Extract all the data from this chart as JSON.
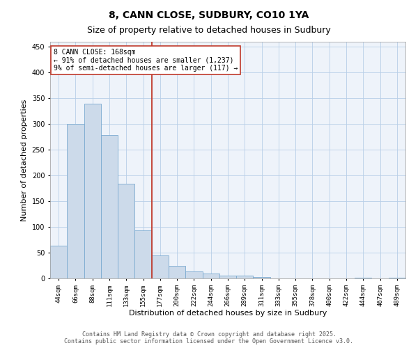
{
  "title": "8, CANN CLOSE, SUDBURY, CO10 1YA",
  "subtitle": "Size of property relative to detached houses in Sudbury",
  "xlabel": "Distribution of detached houses by size in Sudbury",
  "ylabel": "Number of detached properties",
  "categories": [
    "44sqm",
    "66sqm",
    "88sqm",
    "111sqm",
    "133sqm",
    "155sqm",
    "177sqm",
    "200sqm",
    "222sqm",
    "244sqm",
    "266sqm",
    "289sqm",
    "311sqm",
    "333sqm",
    "355sqm",
    "378sqm",
    "400sqm",
    "422sqm",
    "444sqm",
    "467sqm",
    "489sqm"
  ],
  "values": [
    64,
    301,
    340,
    279,
    184,
    93,
    45,
    24,
    14,
    10,
    5,
    5,
    3,
    0,
    0,
    0,
    0,
    0,
    1,
    0,
    1
  ],
  "bar_color": "#ccdaea",
  "bar_edge_color": "#7aaad0",
  "vline_color": "#c0392b",
  "annotation_text": "8 CANN CLOSE: 168sqm\n← 91% of detached houses are smaller (1,237)\n9% of semi-detached houses are larger (117) →",
  "annotation_box_color": "#c0392b",
  "ylim": [
    0,
    460
  ],
  "yticks": [
    0,
    50,
    100,
    150,
    200,
    250,
    300,
    350,
    400,
    450
  ],
  "grid_color": "#b8cfe8",
  "background_color": "#eef3fa",
  "footer": "Contains HM Land Registry data © Crown copyright and database right 2025.\nContains public sector information licensed under the Open Government Licence v3.0.",
  "title_fontsize": 10,
  "subtitle_fontsize": 9,
  "tick_fontsize": 6.5,
  "label_fontsize": 8,
  "annotation_fontsize": 7,
  "footer_fontsize": 6
}
